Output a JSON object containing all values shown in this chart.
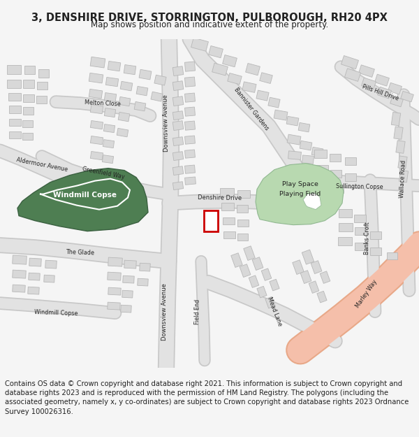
{
  "title": "3, DENSHIRE DRIVE, STORRINGTON, PULBOROUGH, RH20 4PX",
  "subtitle": "Map shows position and indicative extent of the property.",
  "copyright_text": "Contains OS data © Crown copyright and database right 2021. This information is subject to Crown copyright and database rights 2023 and is reproduced with the permission of HM Land Registry. The polygons (including the associated geometry, namely x, y co-ordinates) are subject to Crown copyright and database rights 2023 Ordnance Survey 100026316.",
  "background_color": "#f5f5f5",
  "map_bg": "#ffffff",
  "road_fill": "#e2e2e2",
  "road_edge": "#c8c8c8",
  "building_fill": "#d8d8d8",
  "building_edge": "#b8b8b8",
  "green_dark_fill": "#4e7e52",
  "green_dark_edge": "#3a6040",
  "green_light_fill": "#b8d9b0",
  "green_light_edge": "#90b890",
  "highlight_road_fill": "#f5bfaa",
  "highlight_road_edge": "#e8a888",
  "plot_edge": "#cc0000",
  "plot_fill": "#ffffff",
  "text_color": "#222222",
  "title_fontsize": 10.5,
  "subtitle_fontsize": 8.5,
  "copyright_fontsize": 7.2,
  "road_label_fs": 6.2,
  "green_label_fs": 7.5
}
